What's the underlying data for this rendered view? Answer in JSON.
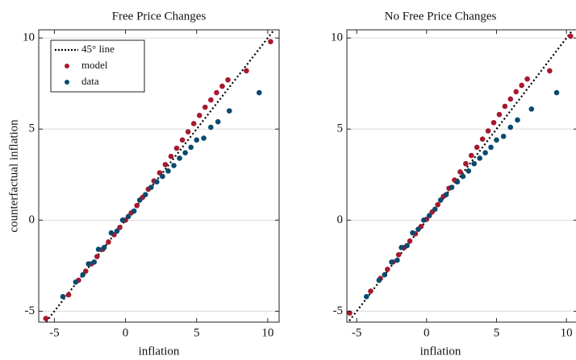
{
  "chart_data": [
    {
      "type": "scatter",
      "title": "Free Price Changes",
      "x_label": "inflation",
      "y_label": "counterfactual inflation",
      "xlim": [
        -6.1,
        10.8
      ],
      "ylim": [
        -5.6,
        10.45
      ],
      "xticks": [
        -5,
        0,
        5,
        10
      ],
      "yticks": [
        -5,
        0,
        5,
        10
      ],
      "grid": "y",
      "legend": "upper left",
      "series": [
        {
          "name": "45° line",
          "color": "#000000",
          "style": "dotted-line",
          "x": [
            -6.1,
            10.8
          ],
          "values": [
            -6.1,
            10.8
          ]
        },
        {
          "name": "model",
          "color": "#a6192e",
          "style": "dot",
          "x": [
            -5.6,
            -4.0,
            -3.3,
            -2.8,
            -2.4,
            -2.0,
            -1.6,
            -1.2,
            -0.8,
            -0.4,
            0,
            0.4,
            0.8,
            1.2,
            1.6,
            2.0,
            2.4,
            2.8,
            3.2,
            3.6,
            4.0,
            4.4,
            4.8,
            5.2,
            5.6,
            6.0,
            6.4,
            6.8,
            7.2,
            8.5,
            10.2
          ],
          "values": [
            -5.4,
            -4.1,
            -3.3,
            -2.8,
            -2.4,
            -2.0,
            -1.6,
            -1.2,
            -0.8,
            -0.4,
            0,
            0.4,
            0.8,
            1.25,
            1.7,
            2.15,
            2.6,
            3.05,
            3.5,
            3.95,
            4.4,
            4.85,
            5.3,
            5.75,
            6.2,
            6.6,
            7.0,
            7.35,
            7.7,
            8.2,
            9.8
          ]
        },
        {
          "name": "data",
          "color": "#0b4a6f",
          "style": "dot",
          "x": [
            -4.4,
            -3.5,
            -3.0,
            -2.6,
            -2.2,
            -1.9,
            -1.5,
            -1.0,
            -0.6,
            -0.2,
            0.2,
            0.6,
            1.0,
            1.4,
            1.8,
            2.2,
            2.6,
            3.0,
            3.4,
            3.8,
            4.2,
            4.6,
            5.0,
            5.5,
            6.0,
            6.5,
            7.3,
            9.4
          ],
          "values": [
            -4.2,
            -3.4,
            -3.0,
            -2.4,
            -2.3,
            -1.6,
            -1.5,
            -0.7,
            -0.6,
            0,
            0.2,
            0.5,
            1.1,
            1.4,
            1.8,
            2.1,
            2.4,
            2.7,
            3.0,
            3.4,
            3.7,
            4.0,
            4.4,
            4.5,
            5.1,
            5.4,
            6.0,
            7.0
          ]
        }
      ]
    },
    {
      "type": "scatter",
      "title": "No Free Price Changes",
      "x_label": "inflation",
      "xlim": [
        -5.7,
        10.8
      ],
      "ylim": [
        -5.6,
        10.45
      ],
      "xticks": [
        -5,
        0,
        5,
        10
      ],
      "yticks": [
        -5,
        0,
        5,
        10
      ],
      "grid": "y",
      "series": [
        {
          "name": "45° line",
          "color": "#000000",
          "style": "dotted-line",
          "x": [
            -5.7,
            10.8
          ],
          "values": [
            -5.7,
            10.8
          ]
        },
        {
          "name": "model",
          "color": "#a6192e",
          "style": "dot",
          "x": [
            -5.5,
            -4.0,
            -3.3,
            -2.8,
            -2.4,
            -2.0,
            -1.6,
            -1.2,
            -0.8,
            -0.4,
            0,
            0.4,
            0.8,
            1.2,
            1.6,
            2.0,
            2.4,
            2.8,
            3.2,
            3.6,
            4.0,
            4.4,
            4.8,
            5.2,
            5.6,
            6.0,
            6.4,
            6.8,
            7.2,
            8.8,
            10.3
          ],
          "values": [
            -5.1,
            -3.9,
            -3.2,
            -2.7,
            -2.3,
            -1.9,
            -1.5,
            -1.15,
            -0.75,
            -0.35,
            0.05,
            0.45,
            0.85,
            1.3,
            1.75,
            2.2,
            2.65,
            3.1,
            3.55,
            4.0,
            4.45,
            4.9,
            5.35,
            5.8,
            6.25,
            6.65,
            7.05,
            7.4,
            7.75,
            8.2,
            10.1
          ]
        },
        {
          "name": "data",
          "color": "#0b4a6f",
          "style": "dot",
          "x": [
            -4.3,
            -3.4,
            -3.0,
            -2.5,
            -2.1,
            -1.8,
            -1.4,
            -1.0,
            -0.6,
            -0.2,
            0.2,
            0.6,
            1.0,
            1.4,
            1.8,
            2.2,
            2.6,
            3.0,
            3.4,
            3.8,
            4.2,
            4.6,
            5.0,
            5.5,
            6.0,
            6.5,
            7.5,
            9.3
          ],
          "values": [
            -4.2,
            -3.3,
            -3.0,
            -2.3,
            -2.2,
            -1.5,
            -1.4,
            -0.7,
            -0.5,
            0,
            0.25,
            0.6,
            1.1,
            1.4,
            1.8,
            2.1,
            2.4,
            2.7,
            3.1,
            3.4,
            3.7,
            4.0,
            4.4,
            4.6,
            5.1,
            5.5,
            6.1,
            7.0
          ]
        }
      ]
    }
  ]
}
